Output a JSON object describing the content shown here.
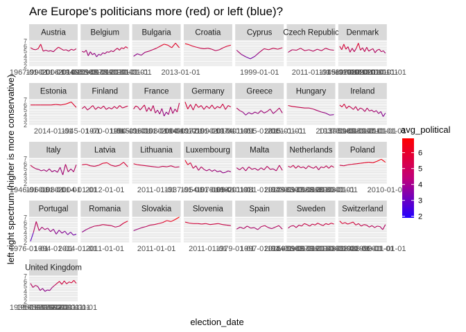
{
  "chart_data": {
    "type": "line",
    "title": "Are Europe's politicians more (red) or left (blue)?",
    "xlabel": "election_date",
    "ylabel": "left right spectrum (higher is more conservative)",
    "yticks": [
      2,
      3,
      4,
      5,
      6,
      7
    ],
    "ylim": [
      2,
      7.2
    ],
    "grid": true,
    "legend": {
      "title": "avg_political",
      "placement": "right",
      "ticks": [
        2,
        3,
        4,
        5,
        6
      ],
      "range": [
        1.9,
        6.9
      ],
      "colors": {
        "low": "#2200ff",
        "high": "#ff0000"
      }
    },
    "facets": [
      {
        "name": "Austria",
        "strip": "Austria",
        "xticks": [
          "1967-01-01",
          "1990-01-01",
          "2006-01-01",
          "2019-01-01"
        ],
        "values": [
          5.7,
          5.4,
          5.3,
          5.5,
          6.4,
          5.0,
          5.2,
          5.0,
          5.1,
          4.9,
          5.4,
          5.8,
          5.5,
          5.2,
          5.3,
          5.0,
          5.4,
          5.2,
          5.5
        ]
      },
      {
        "name": "Belgium",
        "strip": "Belgium",
        "xticks": [
          "1946-01-01",
          "1958-01-01",
          "1968-01-01",
          "1978-01-01",
          "1991-01-01",
          "2010-01-01"
        ],
        "values": [
          5.0,
          4.8,
          5.2,
          4.1,
          4.9,
          4.3,
          4.6,
          3.9,
          4.4,
          4.2,
          4.7,
          4.5,
          4.9,
          4.8,
          5.1,
          4.9,
          5.3,
          5.6,
          5.2,
          5.7,
          5.5,
          5.9,
          5.6
        ]
      },
      {
        "name": "Bulgaria",
        "strip": "Bulgaria",
        "xticks": [
          "1991-01-01",
          "2013-01-01"
        ],
        "values": [
          4.0,
          4.5,
          4.2,
          4.8,
          5.0,
          5.3,
          5.6,
          6.0,
          6.4,
          6.2,
          5.7,
          6.6,
          5.7
        ]
      },
      {
        "name": "Croatia",
        "strip": "Croatia",
        "xticks": [],
        "values": [
          6.5,
          6.3,
          6.0,
          5.8,
          5.6,
          5.5,
          5.6,
          5.4,
          5.1,
          5.3,
          5.7,
          6.0,
          6.2
        ]
      },
      {
        "name": "Cyprus",
        "strip": "Cyprus",
        "xticks": [
          "1999-01-01"
        ],
        "values": [
          5.2,
          4.4,
          3.9,
          3.5,
          4.0,
          4.8,
          5.5,
          5.3,
          5.6,
          5.4,
          5.7
        ]
      },
      {
        "name": "Czech Republic",
        "strip": "Czech Republic",
        "xticks": [
          "2011-01-01"
        ],
        "values": [
          4.8,
          5.3,
          5.2,
          5.6,
          5.1,
          5.3,
          5.0,
          5.4,
          5.1,
          5.6,
          5.3,
          5.2
        ]
      },
      {
        "name": "Denmark",
        "strip": "Denmark",
        "xticks": [
          "1945-01-01",
          "1960-01-01",
          "1970-01-01",
          "1980-01-01",
          "1990-01-01",
          "2001-01-01",
          "2010-01-01"
        ],
        "values": [
          6.0,
          5.3,
          6.4,
          5.4,
          5.9,
          4.8,
          5.6,
          4.9,
          5.6,
          6.6,
          5.2,
          5.7,
          4.9,
          5.8,
          5.0,
          5.3,
          5.5,
          4.7,
          5.2,
          5.4,
          4.9,
          5.1,
          4.6
        ]
      },
      {
        "name": "Estonia",
        "strip": "Estonia",
        "xticks": [
          "2014-01-01"
        ],
        "values": [
          6.0,
          6.0,
          6.0,
          6.0,
          6.0,
          6.1,
          6.0,
          6.2,
          6.6,
          5.5
        ]
      },
      {
        "name": "Finland",
        "strip": "Finland",
        "xticks": [
          "1945-01-01",
          "1970-01-01",
          "1990-01-01"
        ],
        "values": [
          5.3,
          5.7,
          5.0,
          5.4,
          5.9,
          5.1,
          5.6,
          5.3,
          5.8,
          5.1,
          5.5,
          5.2,
          5.7,
          5.3,
          5.9,
          5.4,
          5.6,
          5.8
        ]
      },
      {
        "name": "France",
        "strip": "France",
        "xticks": [
          "1945-01-01",
          "1960-01-01",
          "1980-01-01",
          "2000-01-01"
        ],
        "values": [
          5.2,
          5.8,
          5.6,
          5.0,
          5.5,
          6.0,
          4.7,
          5.5,
          4.8,
          5.9,
          4.4,
          5.0,
          4.2,
          5.3,
          3.8,
          4.6,
          4.1,
          5.6,
          4.3,
          5.2,
          4.6,
          6.4
        ]
      },
      {
        "name": "Germany",
        "strip": "Germany",
        "xticks": [
          "1949-01-01",
          "1972-01-01",
          "1990-01-01",
          "2010-01-01"
        ],
        "values": [
          6.6,
          5.2,
          6.1,
          5.0,
          6.2,
          5.5,
          5.9,
          5.1,
          5.8,
          5.3,
          6.0,
          5.2,
          5.7,
          5.4,
          6.2,
          5.1,
          5.9,
          5.6
        ]
      },
      {
        "name": "Greece",
        "strip": "Greece",
        "xticks": [
          "1974-01-01",
          "1995-01-01",
          "2015-01-01"
        ],
        "values": [
          5.4,
          4.9,
          4.6,
          4.0,
          4.5,
          4.2,
          4.6,
          4.3,
          4.9,
          4.4,
          4.7,
          5.2,
          4.3,
          4.8,
          5.4,
          4.4
        ]
      },
      {
        "name": "Hungary",
        "strip": "Hungary",
        "xticks": [
          "2001-01-01",
          "2013-01-01"
        ],
        "values": [
          5.9,
          5.7,
          5.6,
          5.5,
          5.4,
          5.4,
          5.2,
          4.9,
          4.6,
          4.4,
          4.0,
          4.1
        ]
      },
      {
        "name": "Ireland",
        "strip": "Ireland",
        "xticks": [
          "1937-01-01",
          "1951-01-01",
          "1969-01-01",
          "1981-01-01",
          "1997-01-01",
          "2011-01-01"
        ],
        "values": [
          6.0,
          5.6,
          6.2,
          5.3,
          5.8,
          5.5,
          5.1,
          5.7,
          4.9,
          5.4,
          5.2,
          4.7,
          5.4,
          4.8,
          5.0,
          4.6,
          4.9,
          4.3,
          4.7,
          3.7,
          4.4
        ]
      },
      {
        "name": "Italy",
        "strip": "Italy",
        "xticks": [
          "1946-01-01",
          "1960-01-01",
          "1980-01-01",
          "2004-01-01"
        ],
        "values": [
          5.7,
          5.3,
          5.0,
          4.9,
          4.6,
          4.8,
          4.5,
          5.0,
          4.4,
          4.7,
          4.3,
          5.3,
          3.8,
          5.9,
          4.4,
          5.0,
          4.4,
          5.8
        ]
      },
      {
        "name": "Latvia",
        "strip": "Latvia",
        "xticks": [
          "2012-01-01"
        ],
        "values": [
          5.8,
          5.9,
          5.6,
          5.5,
          5.7,
          6.1,
          6.2,
          5.7,
          5.5,
          5.7,
          6.3,
          5.4
        ]
      },
      {
        "name": "Lithuania",
        "strip": "Lithuania",
        "xticks": [
          "2011-01-01"
        ],
        "values": [
          6.0,
          5.8,
          5.7,
          5.6,
          5.5,
          5.4,
          5.3,
          5.5,
          5.4,
          5.6,
          5.3,
          5.4
        ]
      },
      {
        "name": "Luxembourg",
        "strip": "Luxembourg",
        "xticks": [
          "1937-01-01",
          "1954-01-01",
          "1979-01-01",
          "1994-01-01"
        ],
        "values": [
          6.7,
          5.8,
          6.2,
          5.1,
          5.6,
          4.7,
          5.4,
          4.9,
          4.6,
          4.9,
          4.5,
          4.8,
          4.4,
          4.6,
          4.2,
          4.3,
          4.6,
          4.4
        ]
      },
      {
        "name": "Malta",
        "strip": "Malta",
        "xticks": [
          "1962-01-01",
          "1981-01-01",
          "2017-01-01"
        ],
        "values": [
          5.2,
          4.8,
          5.3,
          4.6,
          5.4,
          4.9,
          5.1,
          4.7,
          5.2,
          4.8,
          5.5,
          4.9,
          5.0,
          4.6,
          5.7,
          4.7
        ]
      },
      {
        "name": "Netherlands",
        "strip": "Netherlands",
        "xticks": [
          "1948-01-01",
          "1963-01-01",
          "1977-01-01",
          "1986-01-01",
          "1998-01-01",
          "2010-01-01"
        ],
        "values": [
          5.5,
          5.3,
          5.7,
          5.1,
          5.6,
          5.2,
          5.4,
          5.0,
          5.6,
          5.3,
          5.1,
          5.5,
          4.8,
          5.4,
          5.2,
          5.6,
          5.1,
          5.6,
          5.3
        ]
      },
      {
        "name": "Poland",
        "strip": "Poland",
        "xticks": [
          "1993-01-01",
          "2010-01-01"
        ],
        "values": [
          5.7,
          5.6,
          5.8,
          5.9,
          6.0,
          6.1,
          6.2,
          6.3,
          6.2,
          6.5,
          6.9,
          6.3
        ]
      },
      {
        "name": "Portugal",
        "strip": "Portugal",
        "xticks": [
          "1976-01-01",
          "1994-01-01",
          "2014-01-01"
        ],
        "values": [
          2.3,
          4.0,
          6.2,
          4.4,
          5.1,
          4.6,
          4.9,
          4.2,
          4.7,
          3.7,
          4.5,
          3.9,
          4.3,
          3.6,
          4.1,
          3.5,
          3.7
        ]
      },
      {
        "name": "Romania",
        "strip": "Romania",
        "xticks": [
          "2011-01-01"
        ],
        "values": [
          4.1,
          4.6,
          5.0,
          5.3,
          5.4,
          5.6,
          5.5,
          5.4,
          5.1,
          5.3,
          5.9,
          6.3
        ]
      },
      {
        "name": "Slovakia",
        "strip": "Slovakia",
        "xticks": [
          "2011-01-01"
        ],
        "values": [
          4.4,
          4.7,
          5.0,
          5.2,
          5.5,
          5.6,
          5.8,
          6.0,
          6.4,
          6.2,
          6.6,
          7.1
        ]
      },
      {
        "name": "Slovenia",
        "strip": "Slovenia",
        "xticks": [
          "2011-01-01"
        ],
        "values": [
          6.1,
          5.9,
          5.8,
          5.8,
          5.7,
          5.8,
          5.6,
          5.7,
          5.8,
          5.6,
          5.5,
          5.4
        ]
      },
      {
        "name": "Spain",
        "strip": "Spain",
        "xticks": [
          "1979-01-01",
          "1997-01-01",
          "2015-01-01"
        ],
        "values": [
          4.7,
          5.1,
          4.8,
          5.3,
          4.9,
          5.0,
          4.6,
          5.2,
          5.4,
          5.0,
          4.8,
          5.1,
          5.4,
          4.7
        ]
      },
      {
        "name": "Sweden",
        "strip": "Sweden",
        "xticks": [
          "1944-01-01",
          "1956-01-01",
          "1968-01-01",
          "1979-01-01",
          "1991-01-01",
          "2010-01-01"
        ],
        "values": [
          4.9,
          5.3,
          5.4,
          5.0,
          5.5,
          5.3,
          5.8,
          5.6,
          5.3,
          5.7,
          5.5,
          5.9,
          5.6,
          5.4,
          5.8,
          5.6,
          5.9,
          5.7
        ]
      },
      {
        "name": "Switzerland",
        "strip": "Switzerland",
        "xticks": [
          "1943-01-01",
          "1963-01-01",
          "1983-01-01",
          "1999-01-01",
          "2011-01-01"
        ],
        "values": [
          6.3,
          5.8,
          6.0,
          5.7,
          5.9,
          6.1,
          5.5,
          5.8,
          5.3,
          5.6,
          5.5,
          5.1,
          5.4,
          5.0,
          5.3,
          5.2,
          4.6,
          5.6
        ]
      },
      {
        "name": "United Kingdom",
        "strip": "United Kingdom",
        "xticks": [
          "1935-01-01",
          "1950-01-01",
          "1959-01-01",
          "1970-01-01",
          "1979-01-01",
          "1992-01-01",
          "2001-01-01",
          "2010-01-01"
        ],
        "values": [
          5.6,
          4.8,
          5.2,
          5.0,
          4.2,
          4.6,
          4.0,
          4.3,
          4.2,
          4.8,
          5.2,
          5.6,
          6.0,
          5.4,
          6.1,
          5.5,
          5.9,
          5.7,
          6.2,
          5.6
        ]
      }
    ]
  }
}
